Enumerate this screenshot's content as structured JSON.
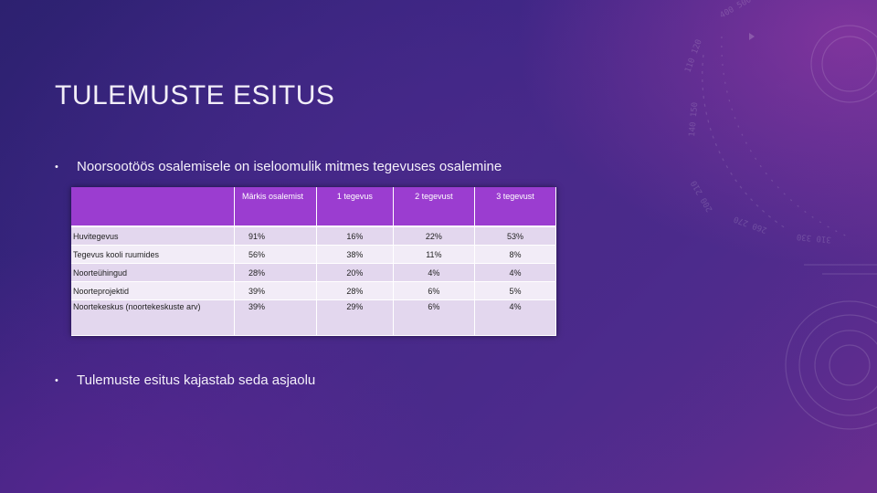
{
  "slide": {
    "title": "TULEMUSTE ESITUS",
    "bullets": [
      "Noorsootöös osalemisele on iseloomulik mitmes tegevuses osalemine",
      "Tulemuste esitus kajastab seda asjaolu"
    ],
    "bullet_symbol": "•"
  },
  "table": {
    "headers": [
      "",
      "Märkis osalemist",
      "1 tegevus",
      "2 tegevust",
      "3 tegevust"
    ],
    "rows": [
      [
        "Huvitegevus",
        "91%",
        "16%",
        "22%",
        "53%"
      ],
      [
        "Tegevus kooli ruumides",
        "56%",
        "38%",
        "11%",
        "8%"
      ],
      [
        "Noorteühingud",
        "28%",
        "20%",
        "4%",
        "4%"
      ],
      [
        "Noorteprojektid",
        "39%",
        "28%",
        "6%",
        "5%"
      ],
      [
        "Noortekeskus (noortekeskuste arv)",
        "39%",
        "29%",
        "6%",
        "4%"
      ]
    ]
  },
  "colors": {
    "header_bg": "#9b3dd0",
    "row_odd": "#e3d7ee",
    "row_even": "#f2ecf7"
  }
}
